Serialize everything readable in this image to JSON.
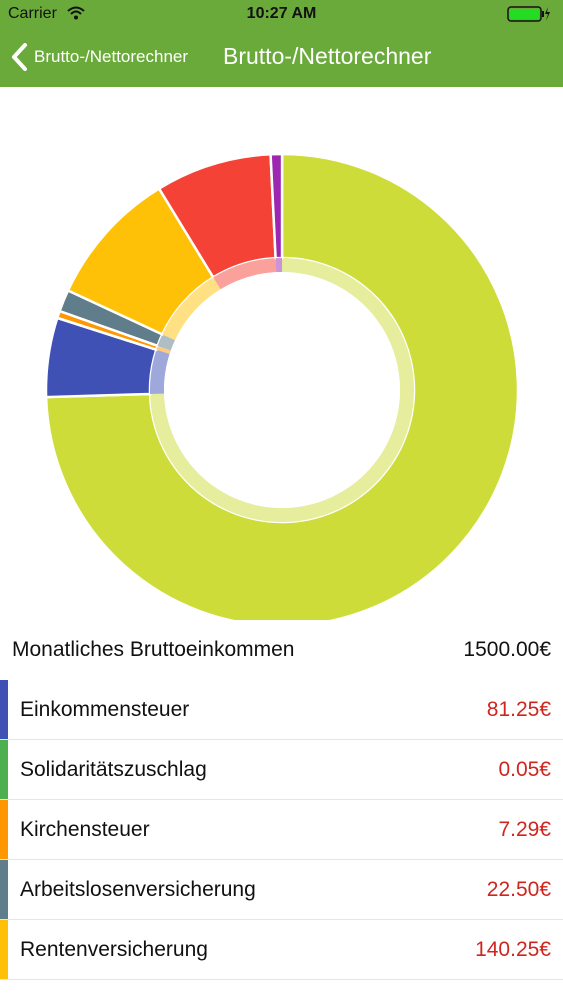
{
  "status_bar": {
    "carrier": "Carrier",
    "time": "10:27 AM",
    "wifi_icon": "wifi-icon",
    "battery_icon": "battery-charging-icon"
  },
  "nav": {
    "back_label": "Brutto-/Nettorechner",
    "title": "Brutto-/Nettorechner",
    "back_icon": "chevron-left-icon",
    "color": "#6aaa3a"
  },
  "summary": {
    "label": "Monatliches Bruttoeinkommen",
    "value": "1500.00€"
  },
  "items": [
    {
      "label": "Einkommensteuer",
      "value": "81.25€",
      "color": "#3f51b5"
    },
    {
      "label": "Solidaritätszuschlag",
      "value": "0.05€",
      "color": "#4caf50"
    },
    {
      "label": "Kirchensteuer",
      "value": "7.29€",
      "color": "#ff9800"
    },
    {
      "label": "Arbeitslosenversicherung",
      "value": "22.50€",
      "color": "#607d8b"
    },
    {
      "label": "Rentenversicherung",
      "value": "140.25€",
      "color": "#ffc107"
    }
  ],
  "chart_data": {
    "type": "pie",
    "style": "donut",
    "total": 1500.0,
    "slices": [
      {
        "value": 1117.79,
        "color": "#cddc39"
      },
      {
        "value": 81.25,
        "color": "#3f51b5"
      },
      {
        "value": 0.05,
        "color": "#4caf50"
      },
      {
        "value": 7.29,
        "color": "#ff9800"
      },
      {
        "value": 22.5,
        "color": "#607d8b"
      },
      {
        "value": 140.25,
        "color": "#ffc107"
      },
      {
        "value": 119.25,
        "color": "#f44336"
      },
      {
        "value": 11.62,
        "color": "#9c27b0"
      }
    ],
    "inner_ring_color": "#dde98a"
  }
}
